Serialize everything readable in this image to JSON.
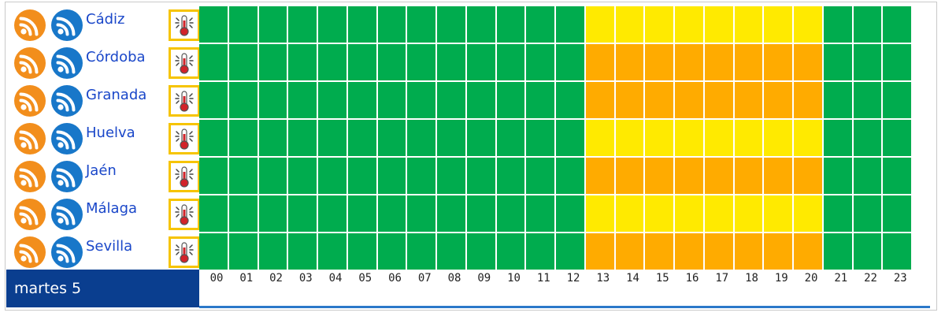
{
  "colors": {
    "green": "#00ac4e",
    "yellow": "#ffea00",
    "orange": "#ffab00",
    "rss_orange": "#f28e1c",
    "rss_blue": "#1877c9",
    "header_blue": "#0a3e8f"
  },
  "icons": {
    "rss_primary": "rss-icon",
    "rss_secondary": "rss-icon",
    "alert": "thermometer-icon"
  },
  "date_label": "martes 5",
  "hours": [
    "00",
    "01",
    "02",
    "03",
    "04",
    "05",
    "06",
    "07",
    "08",
    "09",
    "10",
    "11",
    "12",
    "13",
    "14",
    "15",
    "16",
    "17",
    "18",
    "19",
    "20",
    "21",
    "22",
    "23"
  ],
  "rows": [
    {
      "city": "Cádiz",
      "levels": [
        "green",
        "green",
        "green",
        "green",
        "green",
        "green",
        "green",
        "green",
        "green",
        "green",
        "green",
        "green",
        "green",
        "yellow",
        "yellow",
        "yellow",
        "yellow",
        "yellow",
        "yellow",
        "yellow",
        "yellow",
        "green",
        "green",
        "green"
      ]
    },
    {
      "city": "Córdoba",
      "levels": [
        "green",
        "green",
        "green",
        "green",
        "green",
        "green",
        "green",
        "green",
        "green",
        "green",
        "green",
        "green",
        "green",
        "orange",
        "orange",
        "orange",
        "orange",
        "orange",
        "orange",
        "orange",
        "orange",
        "green",
        "green",
        "green"
      ]
    },
    {
      "city": "Granada",
      "levels": [
        "green",
        "green",
        "green",
        "green",
        "green",
        "green",
        "green",
        "green",
        "green",
        "green",
        "green",
        "green",
        "green",
        "orange",
        "orange",
        "orange",
        "orange",
        "orange",
        "orange",
        "orange",
        "orange",
        "green",
        "green",
        "green"
      ]
    },
    {
      "city": "Huelva",
      "levels": [
        "green",
        "green",
        "green",
        "green",
        "green",
        "green",
        "green",
        "green",
        "green",
        "green",
        "green",
        "green",
        "green",
        "yellow",
        "yellow",
        "yellow",
        "yellow",
        "yellow",
        "yellow",
        "yellow",
        "yellow",
        "green",
        "green",
        "green"
      ]
    },
    {
      "city": "Jaén",
      "levels": [
        "green",
        "green",
        "green",
        "green",
        "green",
        "green",
        "green",
        "green",
        "green",
        "green",
        "green",
        "green",
        "green",
        "orange",
        "orange",
        "orange",
        "orange",
        "orange",
        "orange",
        "orange",
        "orange",
        "green",
        "green",
        "green"
      ]
    },
    {
      "city": "Málaga",
      "levels": [
        "green",
        "green",
        "green",
        "green",
        "green",
        "green",
        "green",
        "green",
        "green",
        "green",
        "green",
        "green",
        "green",
        "yellow",
        "yellow",
        "yellow",
        "yellow",
        "yellow",
        "yellow",
        "yellow",
        "yellow",
        "green",
        "green",
        "green"
      ]
    },
    {
      "city": "Sevilla",
      "levels": [
        "green",
        "green",
        "green",
        "green",
        "green",
        "green",
        "green",
        "green",
        "green",
        "green",
        "green",
        "green",
        "green",
        "orange",
        "orange",
        "orange",
        "orange",
        "orange",
        "orange",
        "orange",
        "orange",
        "green",
        "green",
        "green"
      ]
    }
  ]
}
